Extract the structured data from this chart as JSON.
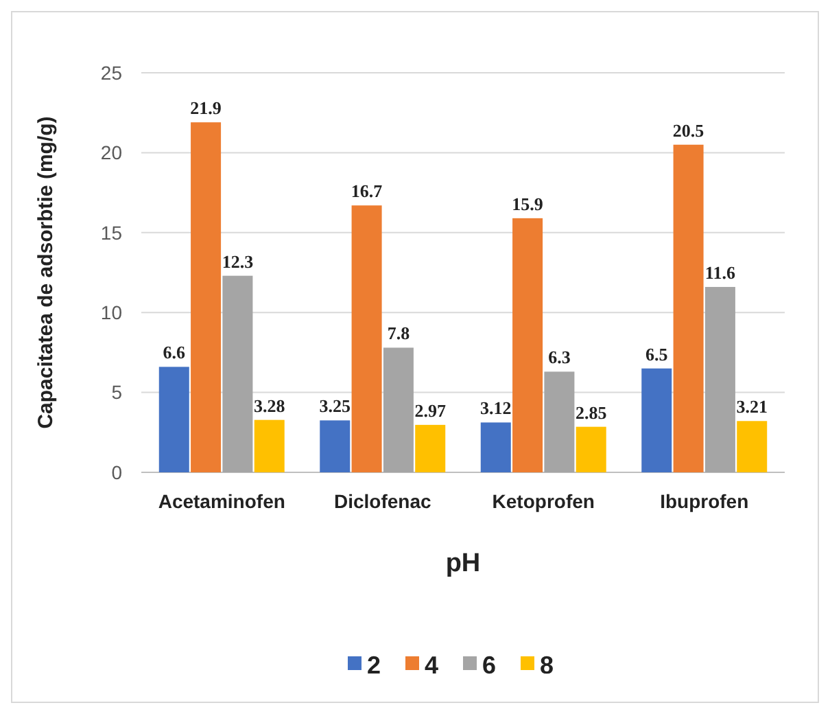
{
  "chart_data": {
    "type": "bar",
    "ylabel": "Capacitatea de adsorbtie  (mg/g)",
    "xlabel": "pH",
    "categories": [
      "Acetaminofen",
      "Diclofenac",
      "Ketoprofen",
      "Ibuprofen"
    ],
    "series": [
      {
        "name": "2",
        "color": "#4472c4",
        "values": [
          6.6,
          3.25,
          3.12,
          6.5
        ]
      },
      {
        "name": "4",
        "color": "#ed7d31",
        "values": [
          21.9,
          16.7,
          15.9,
          20.5
        ]
      },
      {
        "name": "6",
        "color": "#a5a5a5",
        "values": [
          12.3,
          7.8,
          6.3,
          11.6
        ]
      },
      {
        "name": "8",
        "color": "#ffc000",
        "values": [
          3.28,
          2.97,
          2.85,
          3.21
        ]
      }
    ],
    "ylim": [
      0,
      25
    ],
    "yticks": [
      0,
      5,
      10,
      15,
      20,
      25
    ],
    "grid": "y",
    "legend": "bottom",
    "data_labels": true
  }
}
